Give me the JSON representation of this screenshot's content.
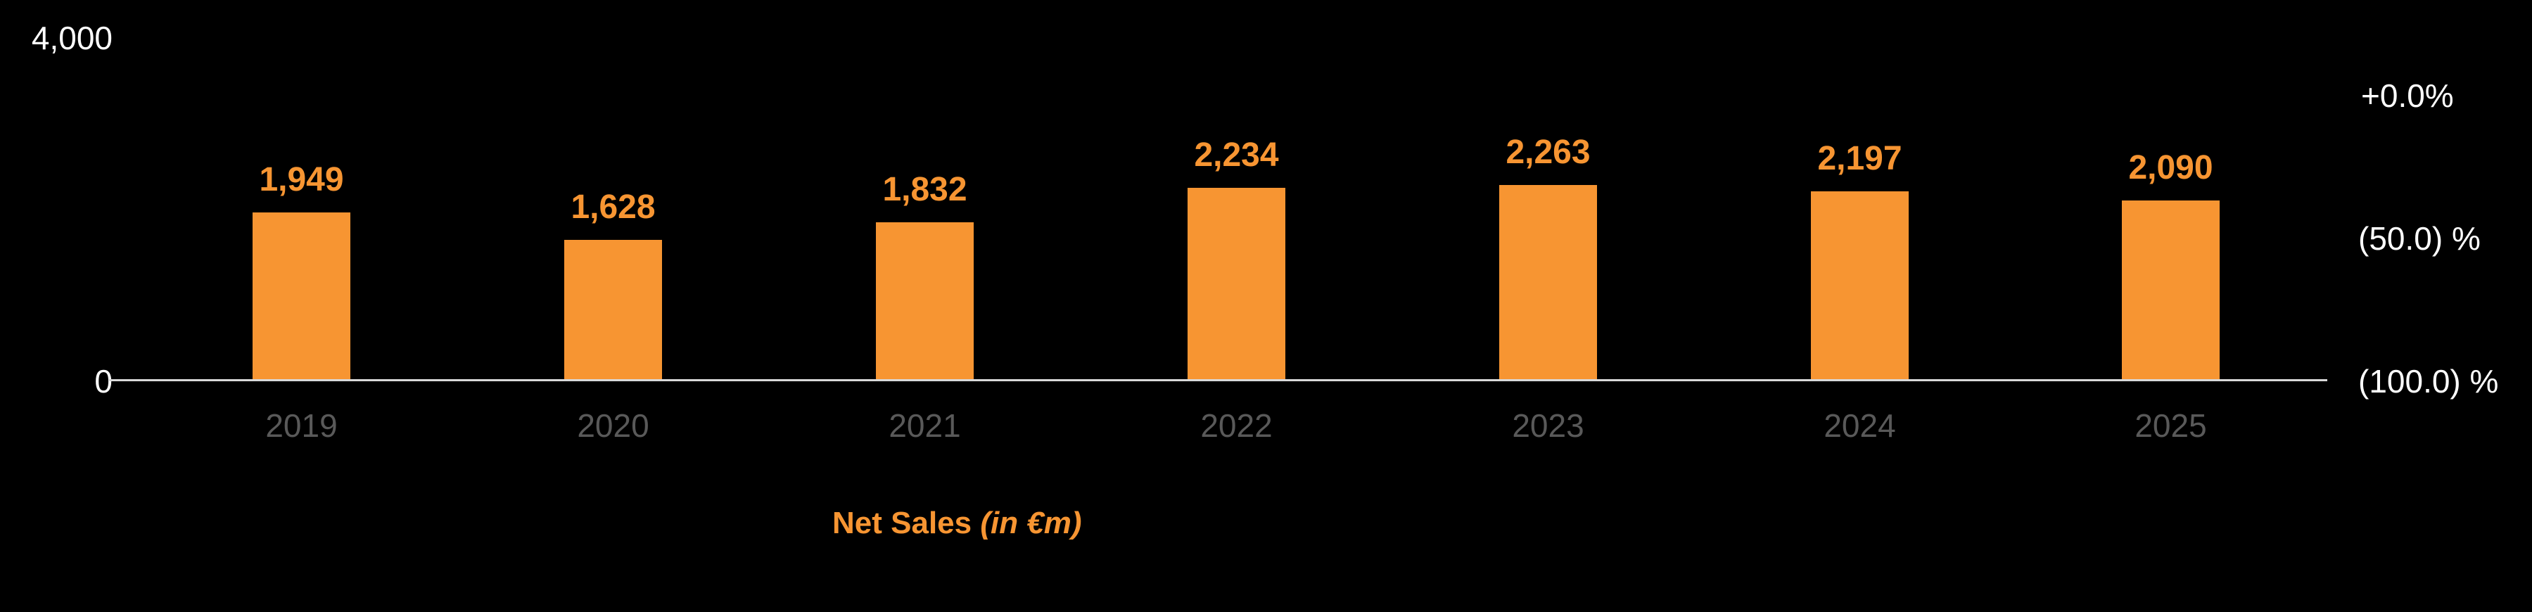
{
  "chart_data": {
    "type": "bar",
    "title": "",
    "categories": [
      "2019",
      "2020",
      "2021",
      "2022",
      "2023",
      "2024",
      "2025"
    ],
    "series": [
      {
        "name": "Net Sales (in €m)",
        "values": [
          1949,
          1628,
          1832,
          2234,
          2263,
          2197,
          2090
        ],
        "color": "#f79532"
      }
    ],
    "value_labels": [
      "1,949",
      "1,628",
      "1,832",
      "2,234",
      "2,263",
      "2,197",
      "2,090"
    ],
    "xlabel": "",
    "ylabel": "",
    "ylim": [
      0,
      4000
    ],
    "y_ticks": [
      "0",
      "4,000"
    ],
    "y2_ticks": [
      "+0.0%",
      "(50.0) %",
      "(100.0) %"
    ],
    "y2lim": [
      -100,
      0
    ],
    "grid": false,
    "legend_position": "bottom-left",
    "legend": {
      "label": "Net Sales",
      "unit": "(in €m)"
    }
  },
  "colors": {
    "bar": "#f79532",
    "axis": "#d9d9d9",
    "year_label": "#595959",
    "background": "#000000"
  }
}
